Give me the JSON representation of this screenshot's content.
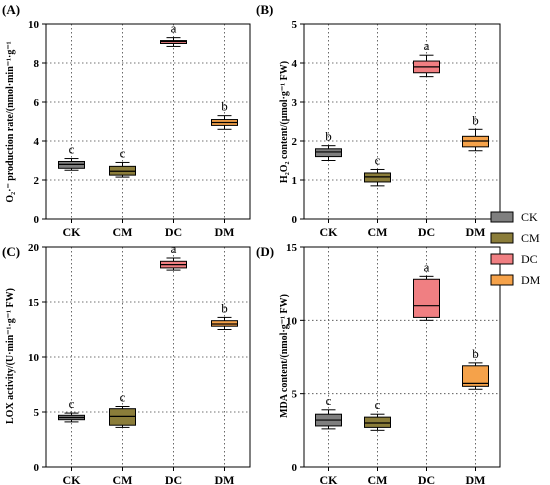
{
  "colors": {
    "CK": "#7f7f7f",
    "CM": "#8b7d3a",
    "DC": "#f07f82",
    "DM": "#f5a24a"
  },
  "legend": {
    "entries": [
      "CK",
      "CM",
      "DC",
      "DM"
    ]
  },
  "chart_data": [
    {
      "type": "box",
      "title": "(A)",
      "ylabel": "O₂·⁻ production rate/(nmol·min⁻¹·g⁻¹",
      "ylim": [
        0,
        10
      ],
      "yticks": [
        "0",
        "2",
        "4",
        "6",
        "8",
        "10"
      ],
      "categories": [
        "CK",
        "CM",
        "DC",
        "DM"
      ],
      "boxes": [
        {
          "category": "CK",
          "min": 2.5,
          "q1": 2.6,
          "median": 2.8,
          "q3": 2.95,
          "max": 3.1,
          "sig": "c"
        },
        {
          "category": "CM",
          "min": 2.15,
          "q1": 2.25,
          "median": 2.45,
          "q3": 2.7,
          "max": 2.9,
          "sig": "c"
        },
        {
          "category": "DC",
          "min": 8.85,
          "q1": 9.0,
          "median": 9.1,
          "q3": 9.15,
          "max": 9.3,
          "sig": "a"
        },
        {
          "category": "DM",
          "min": 4.6,
          "q1": 4.8,
          "median": 4.95,
          "q3": 5.1,
          "max": 5.3,
          "sig": "b"
        }
      ]
    },
    {
      "type": "box",
      "title": "(B)",
      "ylabel": "H₂O₂ content/(μmol·g⁻¹ FW)",
      "ylim": [
        0,
        5
      ],
      "yticks": [
        "0",
        "1",
        "2",
        "3",
        "4",
        "5"
      ],
      "categories": [
        "CK",
        "CM",
        "DC",
        "DM"
      ],
      "boxes": [
        {
          "category": "CK",
          "min": 1.5,
          "q1": 1.6,
          "median": 1.72,
          "q3": 1.8,
          "max": 1.88,
          "sig": "b"
        },
        {
          "category": "CM",
          "min": 0.85,
          "q1": 0.95,
          "median": 1.08,
          "q3": 1.18,
          "max": 1.27,
          "sig": "c"
        },
        {
          "category": "DC",
          "min": 3.65,
          "q1": 3.75,
          "median": 3.9,
          "q3": 4.05,
          "max": 4.2,
          "sig": "a"
        },
        {
          "category": "DM",
          "min": 1.75,
          "q1": 1.85,
          "median": 2.0,
          "q3": 2.12,
          "max": 2.3,
          "sig": "b"
        }
      ]
    },
    {
      "type": "box",
      "title": "(C)",
      "ylabel": "LOX activity/(U·min⁻¹·g⁻¹ FW)",
      "ylim": [
        0,
        20
      ],
      "yticks": [
        "0",
        "5",
        "10",
        "15",
        "20"
      ],
      "categories": [
        "CK",
        "CM",
        "DC",
        "DM"
      ],
      "boxes": [
        {
          "category": "CK",
          "min": 4.1,
          "q1": 4.3,
          "median": 4.5,
          "q3": 4.7,
          "max": 4.9,
          "sig": "c"
        },
        {
          "category": "CM",
          "min": 3.6,
          "q1": 3.8,
          "median": 4.6,
          "q3": 5.3,
          "max": 5.5,
          "sig": "c"
        },
        {
          "category": "DC",
          "min": 17.9,
          "q1": 18.1,
          "median": 18.4,
          "q3": 18.7,
          "max": 19.0,
          "sig": "a"
        },
        {
          "category": "DM",
          "min": 12.5,
          "q1": 12.8,
          "median": 13.0,
          "q3": 13.3,
          "max": 13.6,
          "sig": "b"
        }
      ]
    },
    {
      "type": "box",
      "title": "(D)",
      "ylabel": "MDA content/(nmol·g⁻¹ FW)",
      "ylim": [
        0,
        15
      ],
      "yticks": [
        "0",
        "5",
        "10",
        "15"
      ],
      "categories": [
        "CK",
        "CM",
        "DC",
        "DM"
      ],
      "boxes": [
        {
          "category": "CK",
          "min": 2.6,
          "q1": 2.8,
          "median": 3.2,
          "q3": 3.6,
          "max": 3.9,
          "sig": "c"
        },
        {
          "category": "CM",
          "min": 2.5,
          "q1": 2.7,
          "median": 3.0,
          "q3": 3.4,
          "max": 3.6,
          "sig": "c"
        },
        {
          "category": "DC",
          "min": 10.0,
          "q1": 10.2,
          "median": 11.0,
          "q3": 12.8,
          "max": 13.0,
          "sig": "a"
        },
        {
          "category": "DM",
          "min": 5.3,
          "q1": 5.5,
          "median": 5.7,
          "q3": 6.9,
          "max": 7.1,
          "sig": "b"
        }
      ]
    }
  ]
}
